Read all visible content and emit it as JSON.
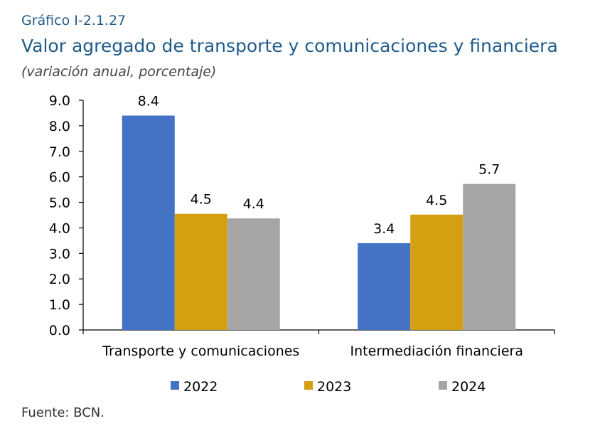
{
  "header": {
    "figure_label": "Gráfico I-2.1.27",
    "title": "Valor agregado de transporte y comunicaciones y financiera",
    "subtitle": "(variación anual, porcentaje)"
  },
  "footer": {
    "source": "Fuente: BCN."
  },
  "chart_data": {
    "type": "bar",
    "title": "Valor agregado de transporte y comunicaciones y financiera",
    "subtitle": "(variación anual, porcentaje)",
    "categories": [
      "Transporte y comunicaciones",
      "Intermediación financiera"
    ],
    "series": [
      {
        "name": "2022",
        "values": [
          8.4,
          3.4
        ],
        "labels": [
          "8.4",
          "3.4"
        ],
        "color": "#4472c4"
      },
      {
        "name": "2023",
        "values": [
          4.55,
          4.52
        ],
        "labels": [
          "4.5",
          "4.5"
        ],
        "color": "#d4a012"
      },
      {
        "name": "2024",
        "values": [
          4.37,
          5.72
        ],
        "labels": [
          "4.4",
          "5.7"
        ],
        "color": "#a5a5a5"
      }
    ],
    "ylim": [
      0,
      9
    ],
    "yticks": [
      "0.0",
      "1.0",
      "2.0",
      "3.0",
      "4.0",
      "5.0",
      "6.0",
      "7.0",
      "8.0",
      "9.0"
    ],
    "xlabel": "",
    "ylabel": "",
    "grid": false,
    "legend_position": "bottom"
  }
}
